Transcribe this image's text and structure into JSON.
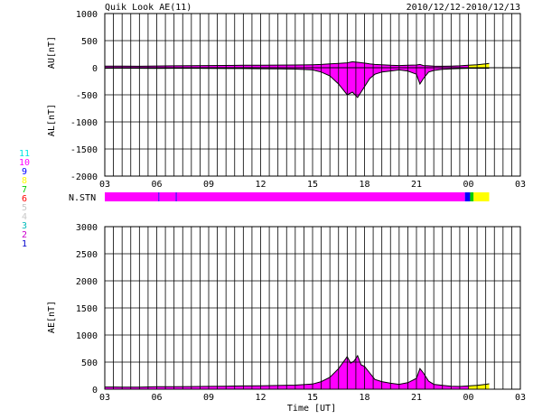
{
  "header": {
    "title": "Quik Look AE(11)",
    "date_range": "2010/12/12-2010/12/13"
  },
  "station_legend": {
    "items": [
      {
        "label": "11",
        "color": "#00e5e5"
      },
      {
        "label": "10",
        "color": "#ff00ff"
      },
      {
        "label": "9",
        "color": "#0000ff"
      },
      {
        "label": "8",
        "color": "#ffff00"
      },
      {
        "label": "7",
        "color": "#00cc00"
      },
      {
        "label": "6",
        "color": "#ff0000"
      },
      {
        "label": "5",
        "color": "#c8c8c8"
      },
      {
        "label": "4",
        "color": "#c8c8c8"
      },
      {
        "label": "3",
        "color": "#00bbbb"
      },
      {
        "label": "2",
        "color": "#cc00cc"
      },
      {
        "label": "1",
        "color": "#0000cc"
      }
    ]
  },
  "colors": {
    "fill_main": "#ff00ff",
    "fill_recent": "#ffff00",
    "fill_blue": "#0000ff",
    "fill_green": "#00cc00",
    "line": "#000000"
  },
  "chart_data": [
    {
      "type": "area",
      "id": "au_al",
      "ylabel_top": "AU[nT]",
      "ylabel_bottom": "AL[nT]",
      "xlabel": "",
      "ylim": [
        -2000,
        1000
      ],
      "yticks": [
        "1000",
        "500",
        "0",
        "-500",
        "-1000",
        "-1500",
        "-2000"
      ],
      "ytick_values": [
        1000,
        500,
        0,
        -500,
        -1000,
        -1500,
        -2000
      ],
      "xlim": [
        3,
        27
      ],
      "xticks": [
        "03",
        "06",
        "09",
        "12",
        "15",
        "18",
        "21",
        "00",
        "03"
      ],
      "xtick_values": [
        3,
        6,
        9,
        12,
        15,
        18,
        21,
        24,
        27
      ],
      "grid": true,
      "x": [
        3,
        4,
        5,
        6,
        7,
        8,
        9,
        10,
        11,
        12,
        13,
        14,
        15,
        15.5,
        16,
        16.5,
        17,
        17.3,
        17.6,
        18,
        18.3,
        18.6,
        19,
        19.5,
        20,
        20.5,
        21,
        21.2,
        21.4,
        21.7,
        22,
        22.5,
        23,
        23.5,
        24,
        24.5,
        25,
        25.2
      ],
      "series": [
        {
          "role": "AU",
          "values": [
            30,
            30,
            28,
            32,
            35,
            38,
            40,
            42,
            45,
            45,
            48,
            50,
            55,
            60,
            70,
            80,
            90,
            110,
            100,
            85,
            70,
            60,
            55,
            45,
            40,
            45,
            50,
            60,
            40,
            35,
            30,
            28,
            30,
            35,
            45,
            55,
            70,
            80
          ]
        },
        {
          "role": "AL",
          "values": [
            -10,
            -8,
            -10,
            -12,
            -10,
            -10,
            -12,
            -15,
            -15,
            -18,
            -20,
            -25,
            -40,
            -80,
            -150,
            -300,
            -500,
            -450,
            -550,
            -350,
            -200,
            -120,
            -80,
            -60,
            -40,
            -60,
            -120,
            -300,
            -200,
            -80,
            -50,
            -30,
            -20,
            -15,
            -10,
            -10,
            -10,
            -10
          ]
        }
      ]
    },
    {
      "type": "station_bar",
      "id": "n_stn",
      "label": "N.STN",
      "segments": [
        {
          "from": 3,
          "to": 6.1,
          "color_key": "fill_main"
        },
        {
          "from": 6.1,
          "to": 6.15,
          "color_key": "fill_blue"
        },
        {
          "from": 6.15,
          "to": 7.1,
          "color_key": "fill_main"
        },
        {
          "from": 7.1,
          "to": 7.15,
          "color_key": "fill_blue"
        },
        {
          "from": 7.15,
          "to": 23.8,
          "color_key": "fill_main"
        },
        {
          "from": 23.8,
          "to": 24.1,
          "color_key": "fill_blue"
        },
        {
          "from": 24.1,
          "to": 24.3,
          "color_key": "fill_green"
        },
        {
          "from": 24.3,
          "to": 25.2,
          "color_key": "fill_recent"
        }
      ]
    },
    {
      "type": "area",
      "id": "ae",
      "ylabel": "AE[nT]",
      "xlabel": "Time [UT]",
      "ylim": [
        0,
        3000
      ],
      "yticks": [
        "3000",
        "2500",
        "2000",
        "1500",
        "1000",
        "500",
        "0"
      ],
      "ytick_values": [
        3000,
        2500,
        2000,
        1500,
        1000,
        500,
        0
      ],
      "xlim": [
        3,
        27
      ],
      "xticks": [
        "03",
        "06",
        "09",
        "12",
        "15",
        "18",
        "21",
        "00",
        "03"
      ],
      "xtick_values": [
        3,
        6,
        9,
        12,
        15,
        18,
        21,
        24,
        27
      ],
      "grid": true,
      "x": [
        3,
        4,
        5,
        6,
        7,
        8,
        9,
        10,
        11,
        12,
        13,
        14,
        15,
        15.5,
        16,
        16.5,
        17,
        17.2,
        17.4,
        17.6,
        17.8,
        18,
        18.3,
        18.6,
        19,
        19.5,
        20,
        20.5,
        21,
        21.2,
        21.4,
        21.7,
        22,
        22.5,
        23,
        23.5,
        24,
        24.5,
        25,
        25.2
      ],
      "values": [
        40,
        38,
        38,
        45,
        45,
        48,
        52,
        55,
        60,
        62,
        68,
        75,
        95,
        140,
        220,
        380,
        600,
        480,
        520,
        620,
        450,
        420,
        300,
        180,
        140,
        110,
        90,
        120,
        200,
        380,
        300,
        150,
        90,
        70,
        55,
        50,
        60,
        70,
        90,
        100
      ]
    }
  ]
}
